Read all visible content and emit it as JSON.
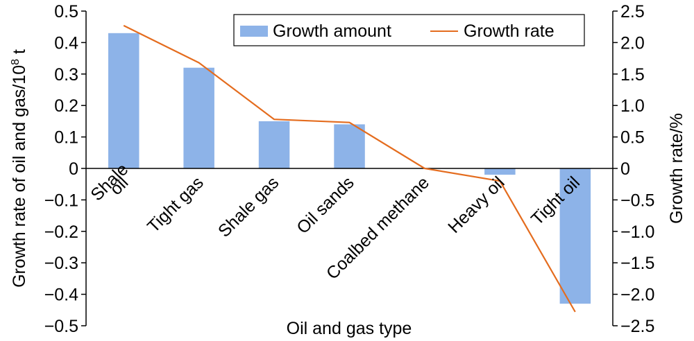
{
  "chart_data": {
    "type": "bar",
    "categories": [
      "Shale oil",
      "Tight gas",
      "Shale gas",
      "Oil sands",
      "Coalbed methane",
      "Heavy oil",
      "Tight oil"
    ],
    "category_label_lines": [
      [
        "Shale",
        "oil"
      ],
      [
        "Tight gas"
      ],
      [
        "Shale gas"
      ],
      [
        "Oil sands"
      ],
      [
        "Coalbed methane"
      ],
      [
        "Heavy oil"
      ],
      [
        "Tight oil"
      ]
    ],
    "series": [
      {
        "name": "Growth amount",
        "type": "bar",
        "axis": "left",
        "color": "#8db3e8",
        "values": [
          0.43,
          0.32,
          0.15,
          0.14,
          0.0,
          -0.02,
          -0.43
        ]
      },
      {
        "name": "Growth rate",
        "type": "line",
        "axis": "right",
        "color": "#e46c1e",
        "values": [
          2.27,
          1.68,
          0.78,
          0.73,
          0.0,
          -0.2,
          -2.28
        ]
      }
    ],
    "xlabel": "Oil and gas type",
    "ylabel_left_prefix": "Growth rate of oil and gas/10",
    "ylabel_left_sup": "8",
    "ylabel_left_suffix": " t",
    "ylabel_right": "Growth rate/%",
    "ylim_left": [
      -0.5,
      0.5
    ],
    "ylim_right": [
      -2.5,
      2.5
    ],
    "yticks_left": [
      "0.5",
      "0.4",
      "0.3",
      "0.2",
      "0.1",
      "0",
      "−0.1",
      "−0.2",
      "−0.3",
      "−0.4",
      "−0.5"
    ],
    "yticks_right": [
      "2.5",
      "2.0",
      "1.5",
      "1.0",
      "0.5",
      "0",
      "−0.5",
      "−1.0",
      "−1.5",
      "−2.0",
      "−2.5"
    ],
    "legend_position": "top-right",
    "grid": false
  }
}
